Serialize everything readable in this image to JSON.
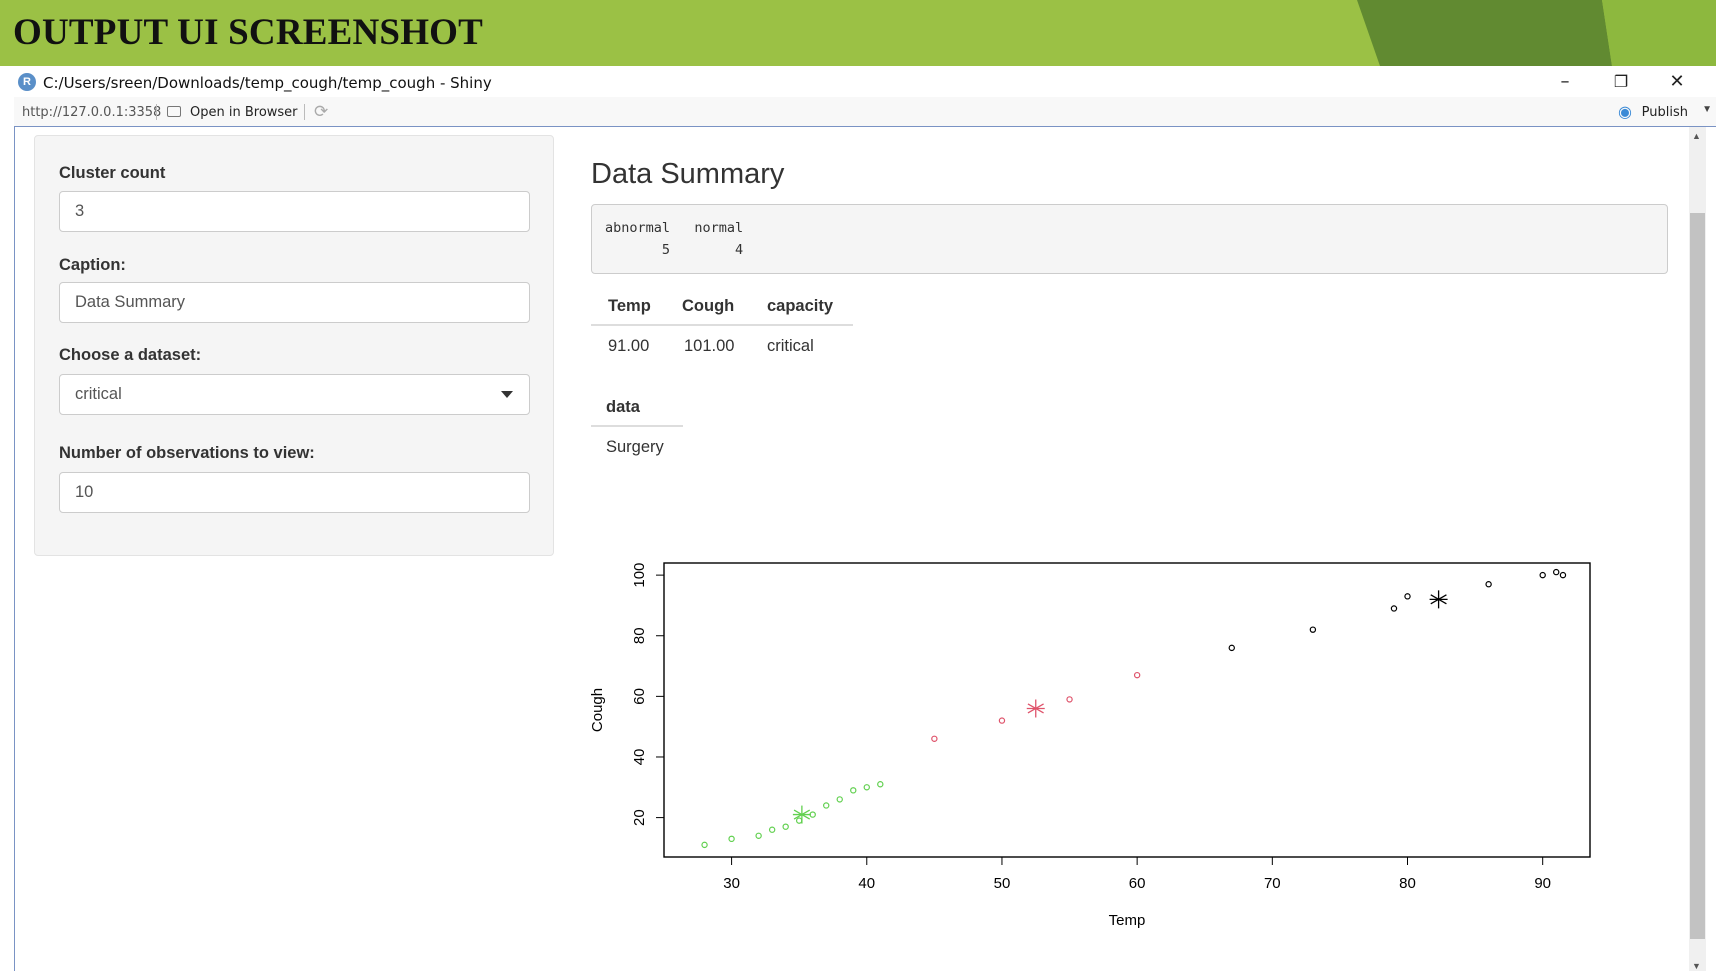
{
  "banner": {
    "title": "OUTPUT UI SCREENSHOT"
  },
  "window": {
    "app_icon": "R",
    "title": "C:/Users/sreen/Downloads/temp_cough/temp_cough - Shiny",
    "minimize_glyph": "–",
    "restore_glyph": "❐",
    "close_glyph": "✕"
  },
  "toolbar": {
    "url": "http://127.0.0.1:3358",
    "open_in_browser": "Open in Browser",
    "publish": "Publish",
    "publish_icon": "publish-icon",
    "refresh_icon": "refresh-icon"
  },
  "sidebar": {
    "cluster_count": {
      "label": "Cluster count",
      "value": "3"
    },
    "caption": {
      "label": "Caption:",
      "value": "Data Summary"
    },
    "dataset": {
      "label": "Choose a dataset:",
      "value": "critical"
    },
    "observations": {
      "label": "Number of observations to view:",
      "value": "10"
    }
  },
  "main": {
    "title": "Data Summary",
    "summary_output": {
      "line1": "abnormal   normal",
      "line2": "       5        4"
    },
    "table1": {
      "headers": [
        "Temp",
        "Cough",
        "capacity"
      ],
      "rows": [
        [
          "91.00",
          "101.00",
          "critical"
        ]
      ]
    },
    "table2": {
      "headers": [
        "data"
      ],
      "rows": [
        [
          "Surgery"
        ]
      ]
    }
  },
  "chart_data": {
    "type": "scatter",
    "title": "",
    "xlabel": "Temp",
    "ylabel": "Cough",
    "xlim": [
      25,
      93.5
    ],
    "ylim": [
      7,
      104
    ],
    "xticks": [
      30,
      40,
      50,
      60,
      70,
      80,
      90
    ],
    "yticks": [
      20,
      40,
      60,
      80,
      100
    ],
    "grid": false,
    "legend": "none",
    "series": [
      {
        "color": "#61d04f",
        "marker": "circle",
        "points": [
          [
            28,
            11
          ],
          [
            30,
            13
          ],
          [
            32,
            14
          ],
          [
            33,
            16
          ],
          [
            34,
            17
          ],
          [
            35,
            19
          ],
          [
            36,
            21
          ],
          [
            37,
            24
          ],
          [
            38,
            26
          ],
          [
            39,
            29
          ],
          [
            40,
            30
          ],
          [
            41,
            31
          ]
        ]
      },
      {
        "color": "#df536b",
        "marker": "circle",
        "points": [
          [
            45,
            46
          ],
          [
            50,
            52
          ],
          [
            55,
            59
          ],
          [
            60,
            67
          ]
        ]
      },
      {
        "color": "#000000",
        "marker": "circle",
        "points": [
          [
            67,
            76
          ],
          [
            73,
            82
          ],
          [
            79,
            89
          ],
          [
            80,
            93
          ],
          [
            86,
            97
          ],
          [
            90,
            100
          ],
          [
            91,
            101
          ],
          [
            91.5,
            100
          ]
        ]
      }
    ],
    "centers": [
      {
        "color": "#61d04f",
        "x": 35.2,
        "y": 21
      },
      {
        "color": "#df536b",
        "x": 52.5,
        "y": 56
      },
      {
        "color": "#000000",
        "x": 82.3,
        "y": 92
      }
    ]
  }
}
